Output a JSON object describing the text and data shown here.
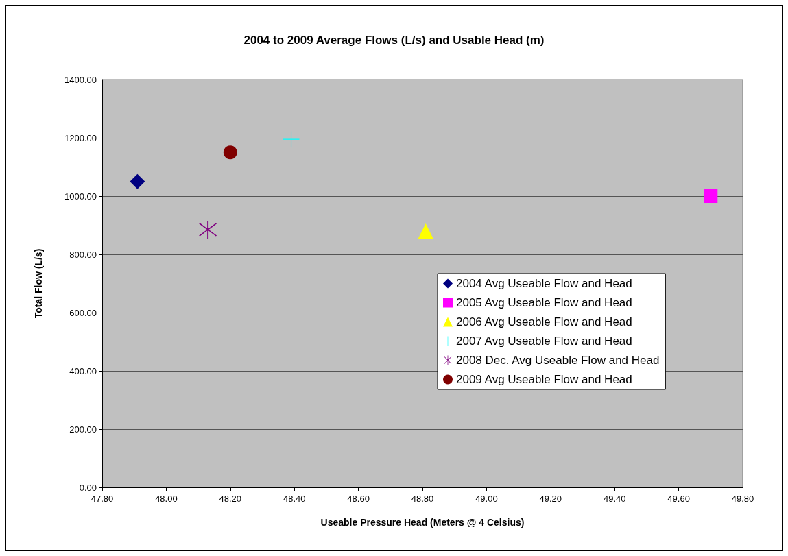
{
  "chart_data": {
    "type": "scatter",
    "title": "2004 to 2009 Average Flows (L/s) and Usable Head (m)",
    "xlabel": "Useable Pressure Head (Meters @ 4 Celsius)",
    "ylabel": "Total Flow (L/s)",
    "xlim": [
      47.8,
      49.8
    ],
    "xticks": [
      {
        "value": 47.8,
        "label": "47.80"
      },
      {
        "value": 48.0,
        "label": "48.00"
      },
      {
        "value": 48.2,
        "label": "48.20"
      },
      {
        "value": 48.4,
        "label": "48.40"
      },
      {
        "value": 48.6,
        "label": "48.60"
      },
      {
        "value": 48.8,
        "label": "48.80"
      },
      {
        "value": 49.0,
        "label": "49.00"
      },
      {
        "value": 49.2,
        "label": "49.20"
      },
      {
        "value": 49.4,
        "label": "49.40"
      },
      {
        "value": 49.6,
        "label": "49.60"
      },
      {
        "value": 49.8,
        "label": "49.80"
      }
    ],
    "ylim": [
      0,
      1400
    ],
    "yticks": [
      {
        "value": 0,
        "label": "0.00"
      },
      {
        "value": 200,
        "label": "200.00"
      },
      {
        "value": 400,
        "label": "400.00"
      },
      {
        "value": 600,
        "label": "600.00"
      },
      {
        "value": 800,
        "label": "800.00"
      },
      {
        "value": 1000,
        "label": "1000.00"
      },
      {
        "value": 1200,
        "label": "1200.00"
      },
      {
        "value": 1400,
        "label": "1400.00"
      }
    ],
    "grid": "y",
    "legend": "right",
    "series": [
      {
        "name": "2004 Avg Useable Flow and Head",
        "color": "#000080",
        "marker": "diamond",
        "x": [
          47.91
        ],
        "values": [
          1050
        ]
      },
      {
        "name": "2005 Avg Useable Flow and Head",
        "color": "#ff00ff",
        "marker": "square",
        "x": [
          49.7
        ],
        "values": [
          1000
        ]
      },
      {
        "name": "2006 Avg Useable Flow and Head",
        "color": "#ffff00",
        "marker": "triangle",
        "x": [
          48.81
        ],
        "values": [
          880
        ]
      },
      {
        "name": "2007 Avg Useable Flow and Head",
        "color": "#00ffff",
        "marker": "cross",
        "x": [
          48.39
        ],
        "values": [
          1195
        ]
      },
      {
        "name": "2008 Dec. Avg Useable Flow and Head",
        "color": "#800080",
        "marker": "star",
        "x": [
          48.13
        ],
        "values": [
          885
        ]
      },
      {
        "name": "2009 Avg Useable Flow and Head",
        "color": "#800000",
        "marker": "circle",
        "x": [
          48.2
        ],
        "values": [
          1150
        ]
      }
    ]
  }
}
